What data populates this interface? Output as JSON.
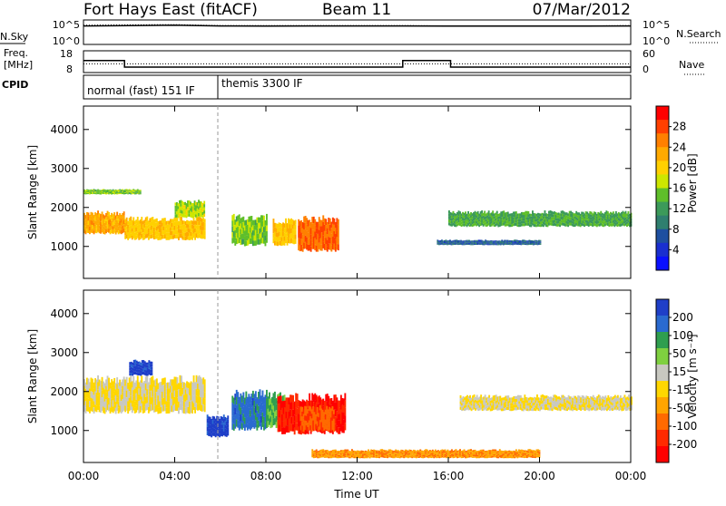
{
  "header": {
    "title": "Fort Hays East (fitACF)",
    "beam": "Beam 11",
    "date": "07/Mar/2012"
  },
  "top_panels": {
    "nsky_label": "N.Sky",
    "nsky_ticks": [
      "10^5",
      "10^0"
    ],
    "nsearch_label": "N.Search",
    "nsearch_ticks": [
      "10^5",
      "10^0"
    ],
    "freq_label_1": "Freq.",
    "freq_label_2": "[MHz]",
    "freq_ticks": [
      "18",
      "8"
    ],
    "nave_label": "Nave",
    "nave_ticks": [
      "60",
      "0"
    ],
    "cpid_label": "CPID",
    "cpid_segments": [
      {
        "label": "normal (fast) 151 IF",
        "start_hour": 0,
        "end_hour": 5.95
      },
      {
        "label": "themis 3300 IF",
        "start_hour": 5.95,
        "end_hour": 24
      }
    ]
  },
  "xaxis": {
    "label": "Time UT",
    "ticks": [
      "00:00",
      "04:00",
      "08:00",
      "12:00",
      "16:00",
      "20:00",
      "00:00"
    ]
  },
  "colorbars": {
    "power": {
      "label": "Power [dB]",
      "ticks": [
        "28",
        "24",
        "20",
        "16",
        "12",
        "8",
        "4"
      ],
      "colors": [
        "#ff0000",
        "#ff4000",
        "#ff8000",
        "#ffaa00",
        "#ffd000",
        "#cde600",
        "#5fbf2a",
        "#3c9a5a",
        "#2f7f6f",
        "#1e4fa0",
        "#1a2fd0",
        "#0a10ff"
      ]
    },
    "velocity": {
      "label": "Velocity [m s⁻¹]",
      "ticks": [
        "200",
        "100",
        "50",
        "15",
        "-15",
        "-50",
        "-100",
        "-200"
      ],
      "colors": [
        "#1f3fc8",
        "#2a6ad0",
        "#2f9e4f",
        "#7fd040",
        "#c8c8c0",
        "#ffd700",
        "#ffa500",
        "#ff6a00",
        "#ff2a00",
        "#ff0000"
      ]
    }
  },
  "chart_data": [
    {
      "type": "line",
      "title": "N.Sky / N.Search",
      "x": [
        0,
        2,
        4,
        6,
        8,
        10,
        12,
        14,
        16,
        18,
        20,
        22,
        24
      ],
      "series": [
        {
          "name": "N.Sky",
          "values": [
            10000,
            12000,
            15000,
            10000,
            9000,
            10000,
            10000,
            10000,
            9000,
            9000,
            9000,
            9000,
            10000
          ]
        },
        {
          "name": "N.Search",
          "values": [
            15000,
            18000,
            20000,
            12000,
            12000,
            12000,
            12000,
            12000,
            10000,
            10000,
            10000,
            10000,
            12000
          ]
        }
      ],
      "ylim": [
        1,
        100000
      ]
    },
    {
      "type": "line",
      "title": "Freq. [MHz] / Nave",
      "x": [
        0,
        1.8,
        1.8,
        14,
        14,
        16.1,
        16.1,
        24
      ],
      "series": [
        {
          "name": "Freq.",
          "values": [
            13.5,
            13.5,
            10.5,
            10.5,
            13.5,
            13.5,
            10.5,
            10.5
          ]
        },
        {
          "name": "Nave",
          "values": [
            24,
            24,
            24,
            24,
            24,
            24,
            24,
            24
          ]
        }
      ],
      "ylim": [
        8,
        18
      ]
    },
    {
      "type": "heatmap",
      "title": "Power",
      "xlabel": "Time UT",
      "ylabel": "Slant Range [km]",
      "xlim": [
        0,
        24
      ],
      "ylim": [
        180,
        4600
      ],
      "yticks": [
        1000,
        2000,
        3000,
        4000
      ],
      "colorbar": {
        "label": "Power [dB]",
        "range": [
          0,
          30
        ]
      },
      "patches": [
        {
          "t0": 0.0,
          "t1": 1.8,
          "r_center": 1600,
          "r_halfwidth": 260,
          "value": 22
        },
        {
          "t0": 1.8,
          "t1": 5.3,
          "r_center": 1450,
          "r_halfwidth": 260,
          "value": 20
        },
        {
          "t0": 4.0,
          "t1": 5.3,
          "r_center": 1950,
          "r_halfwidth": 200,
          "value": 16
        },
        {
          "t0": 0.0,
          "t1": 2.5,
          "r_center": 2400,
          "r_halfwidth": 60,
          "value": 14
        },
        {
          "t0": 6.5,
          "t1": 8.0,
          "r_center": 1400,
          "r_halfwidth": 350,
          "value": 14
        },
        {
          "t0": 8.3,
          "t1": 9.3,
          "r_center": 1350,
          "r_halfwidth": 300,
          "value": 20
        },
        {
          "t0": 9.4,
          "t1": 11.2,
          "r_center": 1300,
          "r_halfwidth": 400,
          "value": 26
        },
        {
          "t0": 16.0,
          "t1": 24.0,
          "r_center": 1700,
          "r_halfwidth": 180,
          "value": 12
        },
        {
          "t0": 15.5,
          "t1": 20.0,
          "r_center": 1100,
          "r_halfwidth": 60,
          "value": 6
        }
      ]
    },
    {
      "type": "heatmap",
      "title": "Velocity",
      "xlabel": "Time UT",
      "ylabel": "Slant Range [km]",
      "xlim": [
        0,
        24
      ],
      "ylim": [
        180,
        4600
      ],
      "yticks": [
        1000,
        2000,
        3000,
        4000
      ],
      "colorbar": {
        "label": "Velocity [m s⁻¹]",
        "range": [
          -200,
          200
        ]
      },
      "patches": [
        {
          "t0": 0.0,
          "t1": 5.3,
          "r_center": 1900,
          "r_halfwidth": 420,
          "value": 0
        },
        {
          "t0": 2.0,
          "t1": 3.0,
          "r_center": 2600,
          "r_halfwidth": 180,
          "value": 200
        },
        {
          "t0": 5.4,
          "t1": 6.3,
          "r_center": 1100,
          "r_halfwidth": 250,
          "value": 200
        },
        {
          "t0": 6.5,
          "t1": 8.0,
          "r_center": 1500,
          "r_halfwidth": 450,
          "value": 150
        },
        {
          "t0": 8.0,
          "t1": 9.0,
          "r_center": 1500,
          "r_halfwidth": 400,
          "value": 100
        },
        {
          "t0": 8.5,
          "t1": 11.5,
          "r_center": 1400,
          "r_halfwidth": 450,
          "value": -180
        },
        {
          "t0": 9.5,
          "t1": 11.0,
          "r_center": 1300,
          "r_halfwidth": 300,
          "value": -120
        },
        {
          "t0": 16.5,
          "t1": 24.0,
          "r_center": 1700,
          "r_halfwidth": 180,
          "value": 0
        },
        {
          "t0": 10.0,
          "t1": 20.0,
          "r_center": 400,
          "r_halfwidth": 100,
          "value": -80
        }
      ]
    }
  ]
}
